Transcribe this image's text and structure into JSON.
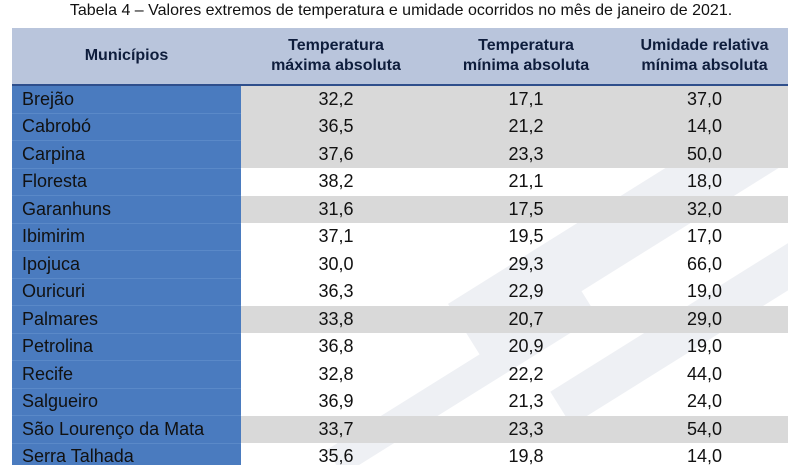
{
  "caption": "Tabela 4 – Valores extremos de temperatura e umidade ocorridos no mês de janeiro de 2021.",
  "headers": {
    "col0": "Municípios",
    "col1_line1": "Temperatura",
    "col1_line2": "máxima absoluta",
    "col2_line1": "Temperatura",
    "col2_line2": "mínima absoluta",
    "col3_line1": "Umidade relativa",
    "col3_line2": "mínima absoluta"
  },
  "colors": {
    "name_column": "#4a7bbf",
    "header": "#b9c5dc",
    "shaded_row": "#d9d9d9",
    "rule": "#2f4f8c"
  },
  "rows": [
    {
      "name": "Brejão",
      "tmax": "32,2",
      "tmin": "17,1",
      "umid": "37,0"
    },
    {
      "name": "Cabrobó",
      "tmax": "36,5",
      "tmin": "21,2",
      "umid": "14,0"
    },
    {
      "name": "Carpina",
      "tmax": "37,6",
      "tmin": "23,3",
      "umid": "50,0"
    },
    {
      "name": "Floresta",
      "tmax": "38,2",
      "tmin": "21,1",
      "umid": "18,0"
    },
    {
      "name": "Garanhuns",
      "tmax": "31,6",
      "tmin": "17,5",
      "umid": "32,0"
    },
    {
      "name": "Ibimirim",
      "tmax": "37,1",
      "tmin": "19,5",
      "umid": "17,0"
    },
    {
      "name": "Ipojuca",
      "tmax": "30,0",
      "tmin": "29,3",
      "umid": "66,0"
    },
    {
      "name": "Ouricuri",
      "tmax": "36,3",
      "tmin": "22,9",
      "umid": "19,0"
    },
    {
      "name": "Palmares",
      "tmax": "33,8",
      "tmin": "20,7",
      "umid": "29,0"
    },
    {
      "name": "Petrolina",
      "tmax": "36,8",
      "tmin": "20,9",
      "umid": "19,0"
    },
    {
      "name": "Recife",
      "tmax": "32,8",
      "tmin": "22,2",
      "umid": "44,0"
    },
    {
      "name": "Salgueiro",
      "tmax": "36,9",
      "tmin": "21,3",
      "umid": "24,0"
    },
    {
      "name": "São Lourenço da Mata",
      "tmax": "33,7",
      "tmin": "23,3",
      "umid": "54,0"
    },
    {
      "name": "Serra Talhada",
      "tmax": "35,6",
      "tmin": "19,8",
      "umid": "14,0"
    }
  ]
}
